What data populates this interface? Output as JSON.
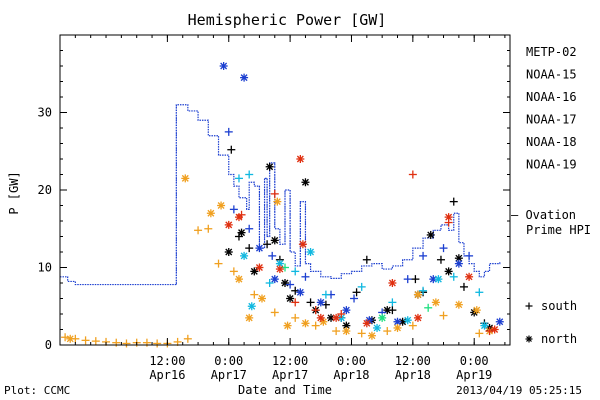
{
  "chart_data": {
    "type": "scatter",
    "title": "Hemispheric Power [GW]",
    "xlabel": "Date and Time",
    "ylabel": "P [GW]",
    "xlim": [
      "2013-04-15T15:00",
      "2013-04-19T07:00"
    ],
    "ylim": [
      0,
      40
    ],
    "yticks": [
      0,
      10,
      20,
      30
    ],
    "xticks": [
      {
        "time": "2013-04-16T12:00",
        "line1": "12:00",
        "line2": "Apr16"
      },
      {
        "time": "2013-04-17T00:00",
        "line1": "0:00",
        "line2": "Apr17"
      },
      {
        "time": "2013-04-17T12:00",
        "line1": "12:00",
        "line2": "Apr17"
      },
      {
        "time": "2013-04-18T00:00",
        "line1": "0:00",
        "line2": "Apr18"
      },
      {
        "time": "2013-04-18T12:00",
        "line1": "12:00",
        "line2": "Apr18"
      },
      {
        "time": "2013-04-19T00:00",
        "line1": "0:00",
        "line2": "Apr19"
      }
    ],
    "grid": false,
    "legend_position": "right",
    "legend": [
      {
        "name": "METP-02",
        "color": "#000000"
      },
      {
        "name": "NOAA-15",
        "color": "#1c3fd0"
      },
      {
        "name": "NOAA-16",
        "color": "#10b8e0"
      },
      {
        "name": "NOAA-17",
        "color": "#1de080"
      },
      {
        "name": "NOAA-18",
        "color": "#f0a020"
      },
      {
        "name": "NOAA-19",
        "color": "#e03010"
      }
    ],
    "symbol_key": [
      {
        "symbol": "+",
        "label": "south"
      },
      {
        "symbol": "*",
        "label": "north"
      }
    ],
    "ovation": {
      "label_line1": "— Ovation",
      "label_line2": "Prime HPI",
      "color": "#1c3fd0",
      "points": [
        [
          "2013-04-15T15:00",
          8.8
        ],
        [
          "2013-04-15T16:30",
          8.2
        ],
        [
          "2013-04-15T18:00",
          7.8
        ],
        [
          "2013-04-16T13:30",
          7.8
        ],
        [
          "2013-04-16T13:45",
          31
        ],
        [
          "2013-04-16T16:00",
          30.2
        ],
        [
          "2013-04-16T18:00",
          29
        ],
        [
          "2013-04-16T20:00",
          27
        ],
        [
          "2013-04-16T22:00",
          24.5
        ],
        [
          "2013-04-17T00:00",
          22
        ],
        [
          "2013-04-17T01:00",
          20.5
        ],
        [
          "2013-04-17T02:00",
          19
        ],
        [
          "2013-04-17T03:30",
          17.5
        ],
        [
          "2013-04-17T04:00",
          21
        ],
        [
          "2013-04-17T05:00",
          20.5
        ],
        [
          "2013-04-17T06:00",
          12.5
        ],
        [
          "2013-04-17T07:00",
          21.5
        ],
        [
          "2013-04-17T07:30",
          14
        ],
        [
          "2013-04-17T08:00",
          23.5
        ],
        [
          "2013-04-17T09:00",
          15
        ],
        [
          "2013-04-17T10:00",
          13
        ],
        [
          "2013-04-17T11:00",
          20
        ],
        [
          "2013-04-17T12:00",
          12
        ],
        [
          "2013-04-17T13:00",
          10.2
        ],
        [
          "2013-04-17T14:00",
          18.5
        ],
        [
          "2013-04-17T15:00",
          10.5
        ],
        [
          "2013-04-17T16:00",
          9.5
        ],
        [
          "2013-04-17T18:00",
          8.8
        ],
        [
          "2013-04-17T20:00",
          8.6
        ],
        [
          "2013-04-17T22:00",
          9.2
        ],
        [
          "2013-04-18T00:00",
          9.5
        ],
        [
          "2013-04-18T02:00",
          10.2
        ],
        [
          "2013-04-18T04:00",
          10.5
        ],
        [
          "2013-04-18T06:00",
          9.8
        ],
        [
          "2013-04-18T08:00",
          10.2
        ],
        [
          "2013-04-18T10:00",
          11
        ],
        [
          "2013-04-18T12:00",
          12.5
        ],
        [
          "2013-04-18T14:00",
          13.8
        ],
        [
          "2013-04-18T16:00",
          14.8
        ],
        [
          "2013-04-18T17:30",
          15.5
        ],
        [
          "2013-04-18T19:00",
          14.8
        ],
        [
          "2013-04-18T20:00",
          17
        ],
        [
          "2013-04-18T21:00",
          13.2
        ],
        [
          "2013-04-18T22:00",
          11.5
        ],
        [
          "2013-04-18T23:00",
          10.5
        ],
        [
          "2013-04-19T00:00",
          9.5
        ],
        [
          "2013-04-19T01:00",
          8.8
        ],
        [
          "2013-04-19T02:00",
          9.5
        ],
        [
          "2013-04-19T03:00",
          10.5
        ],
        [
          "2013-04-19T05:00",
          10.8
        ]
      ]
    },
    "series": [
      {
        "name": "METP-02",
        "color": "#000000",
        "south": [
          [
            "2013-04-17T00:30",
            25.2
          ],
          [
            "2013-04-17T02:00",
            14
          ],
          [
            "2013-04-17T04:00",
            12.5
          ],
          [
            "2013-04-17T07:30",
            13
          ],
          [
            "2013-04-17T10:00",
            11
          ],
          [
            "2013-04-17T13:00",
            7
          ],
          [
            "2013-04-17T16:00",
            5.5
          ],
          [
            "2013-04-17T19:00",
            5.2
          ],
          [
            "2013-04-17T22:00",
            3.5
          ],
          [
            "2013-04-18T01:00",
            6.8
          ],
          [
            "2013-04-18T03:00",
            11
          ],
          [
            "2013-04-18T08:00",
            4.5
          ],
          [
            "2013-04-18T12:30",
            8.5
          ],
          [
            "2013-04-18T14:00",
            6.8
          ],
          [
            "2013-04-18T17:30",
            11
          ],
          [
            "2013-04-18T20:00",
            18.5
          ],
          [
            "2013-04-18T22:00",
            7.5
          ],
          [
            "2013-04-19T02:00",
            2.8
          ]
        ],
        "north": [
          [
            "2013-04-17T00:00",
            12
          ],
          [
            "2013-04-17T02:30",
            14.5
          ],
          [
            "2013-04-17T05:00",
            9.5
          ],
          [
            "2013-04-17T08:00",
            23
          ],
          [
            "2013-04-17T09:00",
            13.5
          ],
          [
            "2013-04-17T11:00",
            8
          ],
          [
            "2013-04-17T12:00",
            6
          ],
          [
            "2013-04-17T15:00",
            21
          ],
          [
            "2013-04-17T17:00",
            4.5
          ],
          [
            "2013-04-17T20:00",
            3.5
          ],
          [
            "2013-04-17T23:00",
            2.5
          ],
          [
            "2013-04-18T04:00",
            3.2
          ],
          [
            "2013-04-18T07:00",
            4.5
          ],
          [
            "2013-04-18T10:00",
            3
          ],
          [
            "2013-04-18T13:00",
            6.5
          ],
          [
            "2013-04-18T15:30",
            14.2
          ],
          [
            "2013-04-18T19:00",
            9.5
          ],
          [
            "2013-04-18T21:00",
            11.2
          ],
          [
            "2013-04-19T00:00",
            4.2
          ],
          [
            "2013-04-19T03:00",
            2.2
          ]
        ]
      },
      {
        "name": "NOAA-15",
        "color": "#1c3fd0",
        "south": [
          [
            "2013-04-17T00:00",
            27.5
          ],
          [
            "2013-04-17T01:00",
            17.5
          ],
          [
            "2013-04-17T04:00",
            15
          ],
          [
            "2013-04-17T08:30",
            11.5
          ],
          [
            "2013-04-17T12:00",
            7.8
          ],
          [
            "2013-04-17T15:00",
            8.8
          ],
          [
            "2013-04-17T20:00",
            6.5
          ],
          [
            "2013-04-18T00:30",
            6
          ],
          [
            "2013-04-18T06:00",
            4.2
          ],
          [
            "2013-04-18T11:00",
            8.5
          ],
          [
            "2013-04-18T14:00",
            11.5
          ],
          [
            "2013-04-18T18:00",
            12.5
          ],
          [
            "2013-04-18T23:00",
            11.5
          ]
        ],
        "north": [
          [
            "2013-04-16T23:00",
            36
          ],
          [
            "2013-04-17T03:00",
            34.5
          ],
          [
            "2013-04-17T06:00",
            12.5
          ],
          [
            "2013-04-17T09:00",
            8.5
          ],
          [
            "2013-04-17T14:00",
            6.8
          ],
          [
            "2013-04-17T18:00",
            5.5
          ],
          [
            "2013-04-17T23:00",
            4.5
          ],
          [
            "2013-04-18T03:30",
            3.2
          ],
          [
            "2013-04-18T09:00",
            3
          ],
          [
            "2013-04-18T16:00",
            8.5
          ],
          [
            "2013-04-18T21:00",
            10.5
          ],
          [
            "2013-04-19T05:00",
            3
          ]
        ]
      },
      {
        "name": "NOAA-16",
        "color": "#10b8e0",
        "south": [
          [
            "2013-04-17T02:00",
            21.5
          ],
          [
            "2013-04-17T04:00",
            22
          ],
          [
            "2013-04-17T08:00",
            8
          ],
          [
            "2013-04-17T13:00",
            9.5
          ],
          [
            "2013-04-17T19:00",
            6.5
          ],
          [
            "2013-04-18T02:00",
            7.5
          ],
          [
            "2013-04-18T08:00",
            5.5
          ],
          [
            "2013-04-18T14:00",
            7
          ],
          [
            "2013-04-18T20:00",
            8.8
          ],
          [
            "2013-04-19T01:00",
            6.8
          ]
        ],
        "north": [
          [
            "2013-04-17T03:00",
            11.5
          ],
          [
            "2013-04-17T04:30",
            5
          ],
          [
            "2013-04-17T10:00",
            10.5
          ],
          [
            "2013-04-17T16:00",
            12
          ],
          [
            "2013-04-17T22:00",
            3.5
          ],
          [
            "2013-04-18T05:00",
            2.2
          ],
          [
            "2013-04-18T11:00",
            3.2
          ],
          [
            "2013-04-18T17:00",
            8.5
          ],
          [
            "2013-04-19T02:00",
            2.5
          ]
        ]
      },
      {
        "name": "NOAA-17",
        "color": "#1de080",
        "south": [
          [
            "2013-04-17T11:00",
            10
          ],
          [
            "2013-04-18T15:00",
            4.8
          ]
        ],
        "north": [
          [
            "2013-04-18T06:00",
            3.5
          ]
        ]
      },
      {
        "name": "NOAA-18",
        "color": "#f0a020",
        "south": [
          [
            "2013-04-15T16:00",
            1
          ],
          [
            "2013-04-15T18:00",
            0.8
          ],
          [
            "2013-04-15T20:00",
            0.6
          ],
          [
            "2013-04-15T22:00",
            0.5
          ],
          [
            "2013-04-16T00:00",
            0.4
          ],
          [
            "2013-04-16T02:00",
            0.3
          ],
          [
            "2013-04-16T04:00",
            0.2
          ],
          [
            "2013-04-16T06:00",
            0.3
          ],
          [
            "2013-04-16T08:00",
            0.3
          ],
          [
            "2013-04-16T10:00",
            0.2
          ],
          [
            "2013-04-16T12:00",
            0.2
          ],
          [
            "2013-04-16T14:00",
            0.4
          ],
          [
            "2013-04-16T16:00",
            0.8
          ],
          [
            "2013-04-16T18:00",
            14.8
          ],
          [
            "2013-04-16T20:00",
            15
          ],
          [
            "2013-04-16T22:00",
            10.5
          ],
          [
            "2013-04-17T01:00",
            9.5
          ],
          [
            "2013-04-17T05:00",
            6.5
          ],
          [
            "2013-04-17T09:00",
            4.2
          ],
          [
            "2013-04-17T13:00",
            3.5
          ],
          [
            "2013-04-17T17:00",
            2.5
          ],
          [
            "2013-04-17T21:00",
            1.8
          ],
          [
            "2013-04-18T02:00",
            1.5
          ],
          [
            "2013-04-18T07:00",
            1.8
          ],
          [
            "2013-04-18T12:00",
            2.5
          ],
          [
            "2013-04-18T18:00",
            3.8
          ],
          [
            "2013-04-19T01:00",
            1.5
          ]
        ],
        "north": [
          [
            "2013-04-15T17:00",
            0.8
          ],
          [
            "2013-04-16T15:30",
            21.5
          ],
          [
            "2013-04-16T20:30",
            17
          ],
          [
            "2013-04-16T22:30",
            18
          ],
          [
            "2013-04-17T02:00",
            8.5
          ],
          [
            "2013-04-17T04:00",
            3.5
          ],
          [
            "2013-04-17T06:30",
            6
          ],
          [
            "2013-04-17T09:30",
            18.5
          ],
          [
            "2013-04-17T11:30",
            2.5
          ],
          [
            "2013-04-17T15:00",
            2.8
          ],
          [
            "2013-04-17T18:30",
            3
          ],
          [
            "2013-04-17T23:00",
            1.8
          ],
          [
            "2013-04-18T04:00",
            1.2
          ],
          [
            "2013-04-18T09:00",
            2.2
          ],
          [
            "2013-04-18T13:00",
            6.5
          ],
          [
            "2013-04-18T16:30",
            5.5
          ],
          [
            "2013-04-18T21:00",
            5.2
          ],
          [
            "2013-04-19T00:30",
            4.5
          ],
          [
            "2013-04-19T03:00",
            1.8
          ]
        ]
      },
      {
        "name": "NOAA-19",
        "color": "#e03010",
        "south": [
          [
            "2013-04-17T02:30",
            16.8
          ],
          [
            "2013-04-17T09:00",
            19.5
          ],
          [
            "2013-04-17T13:00",
            5.5
          ],
          [
            "2013-04-17T17:00",
            4.5
          ],
          [
            "2013-04-17T22:00",
            4
          ],
          [
            "2013-04-18T12:00",
            22
          ],
          [
            "2013-04-18T19:00",
            15.8
          ],
          [
            "2013-04-19T03:00",
            1.8
          ]
        ],
        "north": [
          [
            "2013-04-17T00:00",
            15.5
          ],
          [
            "2013-04-17T02:00",
            16.5
          ],
          [
            "2013-04-17T06:00",
            10
          ],
          [
            "2013-04-17T10:00",
            9.8
          ],
          [
            "2013-04-17T14:00",
            24
          ],
          [
            "2013-04-17T14:30",
            13
          ],
          [
            "2013-04-17T18:00",
            3.5
          ],
          [
            "2013-04-17T21:00",
            3.5
          ],
          [
            "2013-04-18T03:00",
            2.8
          ],
          [
            "2013-04-18T08:00",
            8
          ],
          [
            "2013-04-18T13:00",
            3.5
          ],
          [
            "2013-04-18T19:00",
            16.5
          ],
          [
            "2013-04-18T23:00",
            8.8
          ],
          [
            "2013-04-19T04:00",
            2
          ]
        ]
      }
    ]
  },
  "footer": {
    "left": "Plot: CCMC",
    "right": "2013/04/19 05:25:15"
  }
}
